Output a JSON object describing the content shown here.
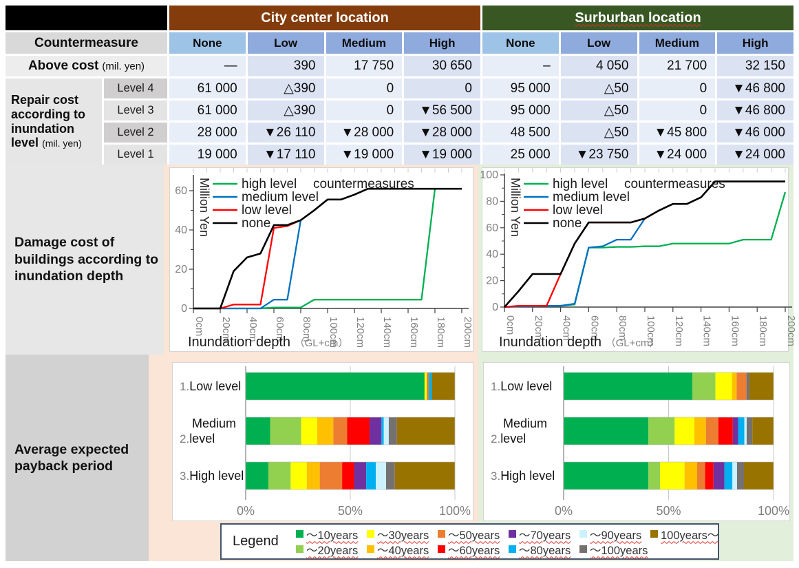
{
  "table": {
    "locations": [
      "City center location",
      "Surburban location"
    ],
    "countermeasure_label": "Countermeasure",
    "col_headers": [
      "None",
      "Low",
      "Medium",
      "High",
      "None",
      "Low",
      "Medium",
      "High"
    ],
    "above_cost_label": "Above cost",
    "above_cost_unit": "(mil. yen)",
    "above_cost_values": [
      "—",
      "390",
      "17 750",
      "30 650",
      "–",
      "4 050",
      "21 700",
      "32 150"
    ],
    "repair_label": "Repair cost according to inundation level",
    "repair_unit": "(mil. yen)",
    "repair_rows": [
      {
        "level": "Level 4",
        "values": [
          "61 000",
          "△390",
          "0",
          "0",
          "95 000",
          "△50",
          "0",
          "▼46 800"
        ]
      },
      {
        "level": "Level 3",
        "values": [
          "61 000",
          "△390",
          "0",
          "▼56 500",
          "95 000",
          "△50",
          "0",
          "▼46 800"
        ]
      },
      {
        "level": "Level 2",
        "values": [
          "28 000",
          "▼26 110",
          "▼28 000",
          "▼28 000",
          "48 500",
          "△50",
          "▼45 800",
          "▼46 000"
        ]
      },
      {
        "level": "Level 1",
        "values": [
          "19 000",
          "▼17 110",
          "▼19 000",
          "▼19 000",
          "25 000",
          "▼23 750",
          "▼24 000",
          "▼24 000"
        ]
      }
    ]
  },
  "sections": {
    "damage_label": "Damage cost of buildings according to inundation depth",
    "payback_label": "Average expected payback period"
  },
  "chart_data": [
    {
      "type": "line",
      "location": "City center",
      "title": "countermeasures",
      "ylabel": "Million Yen",
      "xlabel": "Inundation depth",
      "xlabel_unit": "（GL+cm）",
      "x": [
        0,
        10,
        20,
        30,
        40,
        50,
        60,
        70,
        80,
        90,
        100,
        110,
        120,
        130,
        140,
        150,
        160,
        170,
        180,
        190,
        200
      ],
      "x_tick_labels": [
        "0cm",
        "20cm",
        "40cm",
        "60cm",
        "80cm",
        "100cm",
        "120cm",
        "140cm",
        "160cm",
        "180cm",
        "200cm"
      ],
      "y_ticks": [
        0,
        20,
        40,
        60
      ],
      "ylim": [
        0,
        65
      ],
      "series": [
        {
          "name": "high level",
          "color": "#00B050",
          "values": [
            0,
            0,
            0,
            0,
            0,
            0,
            0.5,
            0.5,
            0.5,
            4.5,
            4.5,
            4.5,
            4.5,
            4.5,
            4.5,
            4.5,
            4.5,
            4.5,
            61,
            61,
            61
          ]
        },
        {
          "name": "medium level",
          "color": "#0070C0",
          "values": [
            0,
            0,
            0,
            0,
            0,
            0,
            4.5,
            4.5,
            45,
            50,
            55.5,
            55.5,
            58,
            61,
            61,
            61,
            61,
            61,
            61,
            61,
            61
          ]
        },
        {
          "name": "low level",
          "color": "#FF0000",
          "values": [
            0,
            0,
            0,
            2,
            2,
            2,
            41,
            42,
            45,
            50,
            55.5,
            55.5,
            58,
            61,
            61,
            61,
            61,
            61,
            61,
            61,
            61
          ]
        },
        {
          "name": "none",
          "color": "#000000",
          "values": [
            0,
            0,
            0,
            19,
            26,
            28,
            42.5,
            42.5,
            45,
            50,
            55.5,
            55.5,
            58,
            61,
            61,
            61,
            61,
            61,
            61,
            61,
            61
          ]
        }
      ]
    },
    {
      "type": "line",
      "location": "Suburban",
      "title": "countermeasures",
      "ylabel": "Million Yen",
      "xlabel": "Inundation depth",
      "xlabel_unit": "（GL+cm）",
      "x": [
        0,
        10,
        20,
        30,
        40,
        50,
        60,
        70,
        80,
        90,
        100,
        110,
        120,
        130,
        140,
        150,
        160,
        170,
        180,
        190,
        200
      ],
      "x_tick_labels": [
        "0cm",
        "20cm",
        "40cm",
        "60cm",
        "80cm",
        "100cm",
        "120cm",
        "140cm",
        "160cm",
        "180cm",
        "200cm"
      ],
      "y_ticks": [
        0,
        20,
        40,
        60,
        80,
        100
      ],
      "ylim": [
        0,
        100
      ],
      "series": [
        {
          "name": "high level",
          "color": "#00B050",
          "values": [
            0,
            0.5,
            0.5,
            1,
            1,
            2,
            45,
            45,
            45.5,
            45.5,
            46,
            46,
            48,
            48,
            48,
            48,
            48,
            51,
            51,
            51,
            87
          ]
        },
        {
          "name": "medium level",
          "color": "#0070C0",
          "values": [
            0,
            0.5,
            0.5,
            1,
            1,
            2.5,
            45,
            46,
            51,
            51,
            67,
            73,
            78,
            78,
            83,
            95,
            95,
            95,
            95,
            95,
            95
          ]
        },
        {
          "name": "low level",
          "color": "#FF0000",
          "values": [
            0,
            1,
            1,
            1,
            25,
            48,
            64,
            64,
            64,
            64,
            67,
            73,
            78,
            78,
            83,
            95,
            95,
            95,
            95,
            95,
            95
          ]
        },
        {
          "name": "none",
          "color": "#000000",
          "values": [
            0,
            12,
            25,
            25,
            25,
            48,
            64,
            64,
            64,
            64,
            67,
            73,
            78,
            78,
            83,
            95,
            95,
            95,
            95,
            95,
            95
          ]
        }
      ]
    },
    {
      "type": "stacked-bar-h",
      "location": "City center",
      "x_ticks": [
        "0%",
        "50%",
        "100%"
      ],
      "xlim": [
        0,
        100
      ],
      "categories": [
        "～10years",
        "～20years",
        "～30years",
        "～40years",
        "～50years",
        "～60years",
        "～70years",
        "～80years",
        "～90years",
        "～100years",
        "100years～"
      ],
      "rows": [
        {
          "num": "1.",
          "label_lines": [
            "Low level"
          ],
          "values": [
            85.5,
            0,
            1,
            0,
            1,
            0,
            0,
            1.5,
            0,
            0,
            11
          ]
        },
        {
          "num": "2.",
          "label_lines": [
            "Medium",
            "level"
          ],
          "values": [
            11.7,
            14.8,
            7.7,
            7.7,
            6.6,
            10.7,
            5.7,
            1.1,
            2.4,
            3.9,
            27.7
          ]
        },
        {
          "num": "3.",
          "label_lines": [
            "High level"
          ],
          "values": [
            10.9,
            10.6,
            7.7,
            6.2,
            10.7,
            5.7,
            5.8,
            4.6,
            4.9,
            4.2,
            28.7
          ]
        }
      ]
    },
    {
      "type": "stacked-bar-h",
      "location": "Suburban",
      "x_ticks": [
        "0%",
        "50%",
        "100%"
      ],
      "xlim": [
        0,
        100
      ],
      "categories": [
        "～10years",
        "～20years",
        "～30years",
        "～40years",
        "～50years",
        "～60years",
        "～70years",
        "～80years",
        "～90years",
        "～100years",
        "100years～"
      ],
      "rows": [
        {
          "num": "1.",
          "label_lines": [
            "Low level"
          ],
          "values": [
            61.4,
            10.9,
            7.9,
            2.2,
            4.7,
            0,
            0,
            0,
            0,
            1.4,
            11.5
          ]
        },
        {
          "num": "2.",
          "label_lines": [
            "Medium",
            "level"
          ],
          "values": [
            40.4,
            12.5,
            9.4,
            5.5,
            5.9,
            6.9,
            2.5,
            3.0,
            1.1,
            2.7,
            10.1
          ]
        },
        {
          "num": "3.",
          "label_lines": [
            "High level"
          ],
          "values": [
            40.4,
            5.5,
            11.7,
            6.0,
            3.8,
            4.0,
            5.2,
            3.8,
            2.2,
            3.3,
            14.1
          ]
        }
      ]
    }
  ],
  "legend": {
    "title": "Legend",
    "items": [
      {
        "label": "～10years",
        "color": "#00B050"
      },
      {
        "label": "～20years",
        "color": "#92D050"
      },
      {
        "label": "～30years",
        "color": "#FFFF00"
      },
      {
        "label": "～40years",
        "color": "#FFC000"
      },
      {
        "label": "～50years",
        "color": "#ED7D31"
      },
      {
        "label": "～60years",
        "color": "#FF0000"
      },
      {
        "label": "～70years",
        "color": "#7030A0"
      },
      {
        "label": "～80years",
        "color": "#00B0F0"
      },
      {
        "label": "～90years",
        "color": "#CCF2FF"
      },
      {
        "label": "～100years",
        "color": "#767171"
      },
      {
        "label": "100years～",
        "color": "#997300"
      }
    ]
  },
  "colors": {
    "city_header": "#843C0C",
    "suburban_header": "#385723",
    "city_panel_bg": "#FBE5D6",
    "suburban_panel_bg": "#E2EFDA"
  }
}
